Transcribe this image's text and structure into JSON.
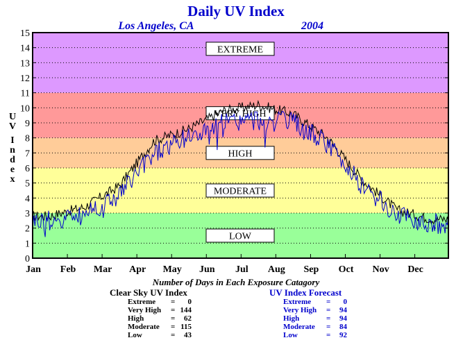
{
  "chart_data": {
    "type": "line",
    "title": "Daily UV Index",
    "subtitle_location": "Los Angeles, CA",
    "subtitle_year": "2004",
    "ylabel": "UV Index",
    "ylim": [
      0,
      15
    ],
    "yticks": [
      "0",
      "1",
      "2",
      "3",
      "4",
      "5",
      "6",
      "7",
      "8",
      "9",
      "10",
      "11",
      "12",
      "13",
      "14",
      "15"
    ],
    "xticks": [
      "Jan",
      "Feb",
      "Mar",
      "Apr",
      "May",
      "Jun",
      "Jul",
      "Aug",
      "Sep",
      "Oct",
      "Nov",
      "Dec"
    ],
    "grid": true,
    "bands": [
      {
        "label": "LOW",
        "from": 0,
        "to": 3,
        "color": "#99ff99"
      },
      {
        "label": "MODERATE",
        "from": 3,
        "to": 6,
        "color": "#ffff99"
      },
      {
        "label": "HIGH",
        "from": 6,
        "to": 8,
        "color": "#ffcc99"
      },
      {
        "label": "VERY HIGH",
        "from": 8,
        "to": 11,
        "color": "#ff9999"
      },
      {
        "label": "EXTREME",
        "from": 11,
        "to": 15,
        "color": "#dd99ff"
      }
    ],
    "series": [
      {
        "name": "Clear Sky UV Index",
        "color": "#000000",
        "month_values": [
          2.8,
          3.4,
          4.8,
          7.8,
          8.6,
          9.8,
          10.2,
          9.6,
          8.0,
          5.2,
          3.2,
          2.6
        ]
      },
      {
        "name": "UV Index Forecast",
        "color": "#0000cc",
        "month_values": [
          2.5,
          3.0,
          4.2,
          7.0,
          8.0,
          9.0,
          9.2,
          9.0,
          7.6,
          4.8,
          2.8,
          2.3
        ]
      }
    ]
  },
  "days_heading": "Number of Days in Each Exposure Catagory",
  "clear_table": {
    "title": "Clear Sky UV Index",
    "rows": [
      {
        "label": "Extreme",
        "value": "0"
      },
      {
        "label": "Very High",
        "value": "144"
      },
      {
        "label": "High",
        "value": "62"
      },
      {
        "label": "Moderate",
        "value": "115"
      },
      {
        "label": "Low",
        "value": "43"
      }
    ]
  },
  "forecast_table": {
    "title": "UV Index Forecast",
    "rows": [
      {
        "label": "Extreme",
        "value": "0"
      },
      {
        "label": "Very High",
        "value": "94"
      },
      {
        "label": "High",
        "value": "94"
      },
      {
        "label": "Moderate",
        "value": "84"
      },
      {
        "label": "Low",
        "value": "92"
      }
    ]
  }
}
